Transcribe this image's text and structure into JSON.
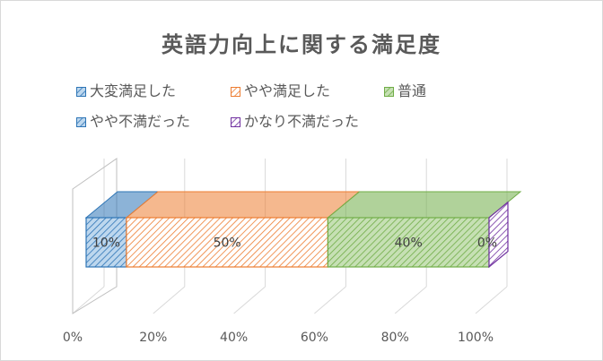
{
  "chart_data": {
    "type": "bar",
    "orientation": "horizontal",
    "stacked": "100%",
    "three_d": true,
    "title": "英語力向上に関する満足度",
    "xlim": [
      0,
      100
    ],
    "x_ticks": [
      "0%",
      "20%",
      "40%",
      "60%",
      "80%",
      "100%"
    ],
    "grid": true,
    "legend_position": "top",
    "series": [
      {
        "name": "大変満足した",
        "value": 10,
        "label": "10%",
        "color": "#2e75b6",
        "fill": "#bdd7ee",
        "pattern": "hatch"
      },
      {
        "name": "やや満足した",
        "value": 50,
        "label": "50%",
        "color": "#ed7d31",
        "fill": "#ffffff",
        "pattern": "hatch"
      },
      {
        "name": "普通",
        "value": 40,
        "label": "40%",
        "color": "#70ad47",
        "fill": "#c6e0b4",
        "pattern": "hatch"
      },
      {
        "name": "やや不満だった",
        "value": 0,
        "label": "",
        "color": "#2e75b6",
        "fill": "#bdd7ee",
        "pattern": "hatch"
      },
      {
        "name": "かなり不満だった",
        "value": 0,
        "label": "0%",
        "color": "#7030a0",
        "fill": "#ffffff",
        "pattern": "hatch"
      }
    ]
  }
}
